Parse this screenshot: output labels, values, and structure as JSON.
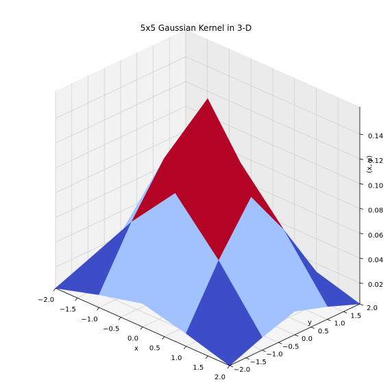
{
  "colors": {
    "pane_left": "#f2f2f2",
    "pane_back": "#ebebeb",
    "pane_floor": "#f5f5f5",
    "grid": "#d0d0d0",
    "face_dark": "#3d4cc7",
    "face_light": "#a2c1ff",
    "face_red": "#b40426"
  },
  "chart_data": {
    "type": "surface",
    "title": "5x5 Gaussian Kernel in 3-D",
    "xlabel": "x",
    "ylabel": "y",
    "zlabel": "(x, y)",
    "x": [
      -2,
      -1,
      0,
      1,
      2
    ],
    "y": [
      -2,
      -1,
      0,
      1,
      2
    ],
    "z": [
      [
        0.003,
        0.0133,
        0.0219,
        0.0133,
        0.003
      ],
      [
        0.0133,
        0.0596,
        0.0983,
        0.0596,
        0.0133
      ],
      [
        0.0219,
        0.0983,
        0.1621,
        0.0983,
        0.0219
      ],
      [
        0.0133,
        0.0596,
        0.0983,
        0.0596,
        0.0133
      ],
      [
        0.003,
        0.0133,
        0.0219,
        0.0133,
        0.003
      ]
    ],
    "xlim": [
      -2,
      2
    ],
    "ylim": [
      -2,
      2
    ],
    "zlim": [
      0.003,
      0.162
    ],
    "colormap": "coolwarm",
    "x_ticks": [
      "−2.0",
      "−1.5",
      "−1.0",
      "−0.5",
      "0.0",
      "0.5",
      "1.0",
      "1.5",
      "2.0"
    ],
    "y_ticks": [
      "−2.0",
      "−1.5",
      "−1.0",
      "−0.5",
      "0.0",
      "0.5",
      "1.0",
      "1.5",
      "2.0"
    ],
    "z_ticks": [
      "0.02",
      "0.04",
      "0.06",
      "0.08",
      "0.10",
      "0.12",
      "0.14"
    ],
    "grid": true
  }
}
